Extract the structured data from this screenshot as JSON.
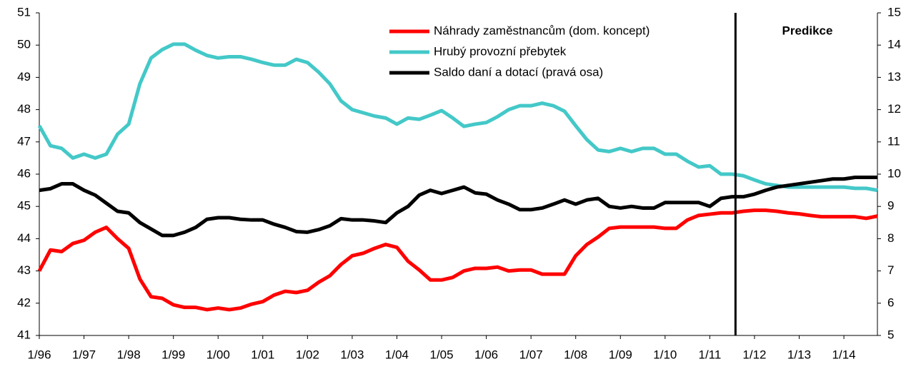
{
  "chart_data": {
    "type": "line",
    "categories": [
      "1/96",
      null,
      null,
      null,
      "1/97",
      null,
      null,
      null,
      "1/98",
      null,
      null,
      null,
      "1/99",
      null,
      null,
      null,
      "1/00",
      null,
      null,
      null,
      "1/01",
      null,
      null,
      null,
      "1/02",
      null,
      null,
      null,
      "1/03",
      null,
      null,
      null,
      "1/04",
      null,
      null,
      null,
      "1/05",
      null,
      null,
      null,
      "1/06",
      null,
      null,
      null,
      "1/07",
      null,
      null,
      null,
      "1/08",
      null,
      null,
      null,
      "1/09",
      null,
      null,
      null,
      "1/10",
      null,
      null,
      null,
      "1/11",
      null,
      null,
      null,
      "1/12",
      null,
      null,
      null,
      "1/13",
      null,
      null,
      null,
      "1/14",
      null,
      null,
      null
    ],
    "series": [
      {
        "name": "Náhrady zaměstnancům (dom. koncept)",
        "color": "#ff0000",
        "axis": "y",
        "values": [
          43.0,
          43.65,
          43.6,
          43.85,
          43.95,
          44.2,
          44.35,
          44.0,
          43.7,
          42.75,
          42.2,
          42.15,
          41.95,
          41.87,
          41.87,
          41.8,
          41.85,
          41.8,
          41.85,
          41.97,
          42.05,
          42.25,
          42.37,
          42.33,
          42.4,
          42.65,
          42.85,
          43.2,
          43.47,
          43.55,
          43.7,
          43.82,
          43.73,
          43.3,
          43.03,
          42.72,
          42.72,
          42.8,
          43.0,
          43.08,
          43.08,
          43.12,
          43.0,
          43.03,
          43.03,
          42.9,
          42.9,
          42.9,
          43.47,
          43.82,
          44.05,
          44.32,
          44.36,
          44.36,
          44.36,
          44.36,
          44.32,
          44.32,
          44.58,
          44.72,
          44.76,
          44.8,
          44.8,
          44.85,
          44.88,
          44.88,
          44.85,
          44.8,
          44.77,
          44.72,
          44.68,
          44.68,
          44.68,
          44.68,
          44.63,
          44.7
        ]
      },
      {
        "name": "Hrubý provozní přebytek",
        "color": "#44c8c8",
        "axis": "y",
        "values": [
          47.5,
          46.88,
          46.8,
          46.5,
          46.62,
          46.5,
          46.62,
          47.24,
          47.55,
          48.8,
          49.6,
          49.86,
          50.03,
          50.03,
          49.84,
          49.68,
          49.6,
          49.64,
          49.64,
          49.56,
          49.46,
          49.38,
          49.38,
          49.56,
          49.46,
          49.16,
          48.8,
          48.27,
          48.0,
          47.9,
          47.8,
          47.74,
          47.55,
          47.74,
          47.7,
          47.83,
          47.97,
          47.74,
          47.48,
          47.55,
          47.6,
          47.78,
          48.0,
          48.12,
          48.12,
          48.2,
          48.12,
          47.95,
          47.5,
          47.07,
          46.75,
          46.7,
          46.8,
          46.7,
          46.8,
          46.8,
          46.62,
          46.62,
          46.4,
          46.22,
          46.26,
          46.0,
          46.0,
          45.95,
          45.82,
          45.7,
          45.65,
          45.6,
          45.6,
          45.6,
          45.6,
          45.6,
          45.6,
          45.56,
          45.56,
          45.5
        ]
      },
      {
        "name": "Saldo daní a dotací (pravá osa)",
        "color": "#000000",
        "axis": "y2",
        "values": [
          9.5,
          9.55,
          9.7,
          9.7,
          9.5,
          9.35,
          9.1,
          8.85,
          8.8,
          8.5,
          8.3,
          8.1,
          8.1,
          8.2,
          8.35,
          8.6,
          8.65,
          8.65,
          8.6,
          8.58,
          8.58,
          8.45,
          8.35,
          8.22,
          8.2,
          8.28,
          8.4,
          8.62,
          8.58,
          8.58,
          8.55,
          8.5,
          8.8,
          9.0,
          9.35,
          9.5,
          9.4,
          9.5,
          9.6,
          9.42,
          9.38,
          9.2,
          9.07,
          8.9,
          8.9,
          8.95,
          9.07,
          9.2,
          9.07,
          9.2,
          9.25,
          9.0,
          8.95,
          9.0,
          8.95,
          8.95,
          9.12,
          9.12,
          9.12,
          9.12,
          9.0,
          9.25,
          9.3,
          9.3,
          9.38,
          9.5,
          9.6,
          9.65,
          9.7,
          9.75,
          9.8,
          9.85,
          9.85,
          9.9,
          9.9,
          9.9
        ]
      }
    ],
    "ylim": [
      41,
      51
    ],
    "yticks": [
      41,
      42,
      43,
      44,
      45,
      46,
      47,
      48,
      49,
      50,
      51
    ],
    "y2lim": [
      5,
      15
    ],
    "y2ticks": [
      5,
      6,
      7,
      8,
      9,
      10,
      11,
      12,
      13,
      14,
      15
    ],
    "forecast": {
      "x_index": 62.3,
      "label": "Predikce"
    },
    "legend": "top-right"
  }
}
